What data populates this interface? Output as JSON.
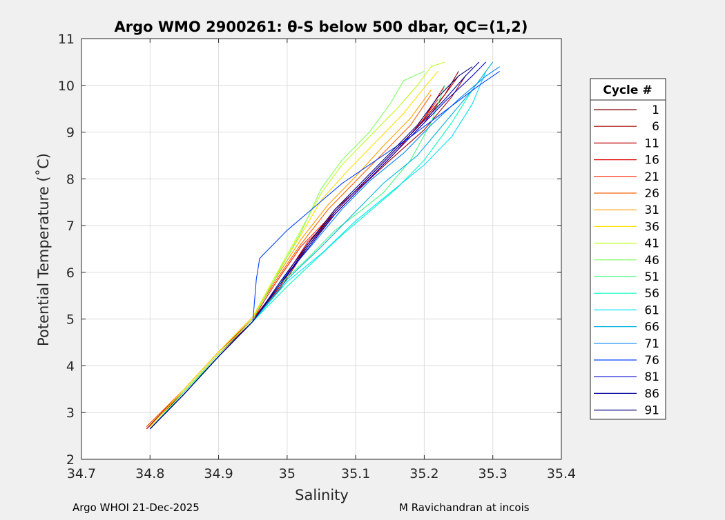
{
  "chart_data": {
    "type": "line",
    "title": "Argo WMO 2900261: θ-S below 500 dbar,  QC=(1,2)",
    "xlabel": "Salinity",
    "ylabel": "Potential Temperature (˚C)",
    "xlim": [
      34.7,
      35.4
    ],
    "ylim": [
      2,
      11
    ],
    "xticks": [
      34.7,
      34.8,
      34.9,
      35.0,
      35.1,
      35.2,
      35.3,
      35.4
    ],
    "xtick_labels": [
      "34.7",
      "34.8",
      "34.9",
      "35",
      "35.1",
      "35.2",
      "35.3",
      "35.4"
    ],
    "yticks": [
      2,
      3,
      4,
      5,
      6,
      7,
      8,
      9,
      10,
      11
    ],
    "ytick_labels": [
      "2",
      "3",
      "4",
      "5",
      "6",
      "7",
      "8",
      "9",
      "10",
      "11"
    ],
    "grid": true,
    "legend_title": "Cycle #",
    "legend_position": "right-outside",
    "series": [
      {
        "name": "1",
        "color": "#800000",
        "x": [
          34.795,
          34.85,
          34.9,
          34.95,
          34.99,
          35.03,
          35.07,
          35.11,
          35.15,
          35.19,
          35.23,
          35.25
        ],
        "y": [
          2.65,
          3.5,
          4.3,
          5.0,
          5.7,
          6.6,
          7.3,
          7.9,
          8.5,
          9.1,
          9.8,
          10.3
        ]
      },
      {
        "name": "6",
        "color": "#a00000",
        "x": [
          34.795,
          34.85,
          34.9,
          34.95,
          34.99,
          35.03,
          35.07,
          35.11,
          35.15,
          35.2,
          35.24,
          35.26
        ],
        "y": [
          2.65,
          3.45,
          4.25,
          4.95,
          5.65,
          6.55,
          7.25,
          7.85,
          8.4,
          9.05,
          9.75,
          10.2
        ]
      },
      {
        "name": "11",
        "color": "#c00000",
        "x": [
          34.795,
          34.85,
          34.9,
          34.95,
          34.99,
          35.03,
          35.07,
          35.12,
          35.16,
          35.2,
          35.23,
          35.25
        ],
        "y": [
          2.65,
          3.45,
          4.25,
          4.95,
          5.7,
          6.6,
          7.35,
          8.0,
          8.6,
          9.2,
          9.8,
          10.2
        ]
      },
      {
        "name": "16",
        "color": "#e00000",
        "x": [
          34.795,
          34.85,
          34.9,
          34.95,
          34.99,
          35.03,
          35.08,
          35.12,
          35.16,
          35.2,
          35.23
        ],
        "y": [
          2.7,
          3.5,
          4.3,
          5.0,
          5.75,
          6.65,
          7.4,
          8.0,
          8.6,
          9.3,
          10.0
        ]
      },
      {
        "name": "21",
        "color": "#ff2000",
        "x": [
          34.795,
          34.85,
          34.9,
          34.95,
          34.98,
          35.02,
          35.07,
          35.11,
          35.15,
          35.19,
          35.22
        ],
        "y": [
          2.7,
          3.5,
          4.3,
          5.0,
          5.7,
          6.55,
          7.3,
          7.9,
          8.5,
          9.1,
          9.7
        ]
      },
      {
        "name": "26",
        "color": "#ff6000",
        "x": [
          34.795,
          34.85,
          34.9,
          34.95,
          34.98,
          35.02,
          35.06,
          35.1,
          35.14,
          35.18,
          35.21
        ],
        "y": [
          2.7,
          3.5,
          4.3,
          5.05,
          5.75,
          6.6,
          7.35,
          7.95,
          8.55,
          9.15,
          9.8
        ]
      },
      {
        "name": "31",
        "color": "#ffa000",
        "x": [
          34.8,
          34.85,
          34.9,
          34.95,
          34.98,
          35.02,
          35.06,
          35.1,
          35.14,
          35.18,
          35.21
        ],
        "y": [
          2.7,
          3.5,
          4.3,
          5.05,
          5.8,
          6.7,
          7.45,
          8.05,
          8.7,
          9.3,
          9.9
        ]
      },
      {
        "name": "36",
        "color": "#ffe000",
        "x": [
          34.8,
          34.85,
          34.9,
          34.95,
          34.98,
          35.02,
          35.05,
          35.09,
          35.13,
          35.17,
          35.2,
          35.22
        ],
        "y": [
          2.7,
          3.5,
          4.3,
          5.05,
          5.85,
          6.8,
          7.55,
          8.2,
          8.8,
          9.4,
          9.95,
          10.3
        ]
      },
      {
        "name": "41",
        "color": "#c0ff20",
        "x": [
          34.8,
          34.85,
          34.9,
          34.95,
          34.98,
          35.02,
          35.05,
          35.08,
          35.12,
          35.16,
          35.19,
          35.21,
          35.23
        ],
        "y": [
          2.65,
          3.45,
          4.25,
          5.0,
          5.85,
          6.9,
          7.7,
          8.3,
          8.9,
          9.5,
          10.0,
          10.4,
          10.5
        ]
      },
      {
        "name": "46",
        "color": "#80ff60",
        "x": [
          34.8,
          34.85,
          34.9,
          34.95,
          34.98,
          35.02,
          35.05,
          35.08,
          35.12,
          35.15,
          35.17,
          35.2
        ],
        "y": [
          2.65,
          3.45,
          4.25,
          5.0,
          5.8,
          6.85,
          7.8,
          8.4,
          9.0,
          9.6,
          10.1,
          10.3
        ]
      },
      {
        "name": "51",
        "color": "#40ff80",
        "x": [
          34.8,
          34.85,
          34.9,
          34.95,
          34.99,
          35.03,
          35.07,
          35.11,
          35.14,
          35.18,
          35.21,
          35.23
        ],
        "y": [
          2.65,
          3.45,
          4.2,
          4.95,
          5.75,
          6.3,
          6.9,
          7.35,
          7.7,
          8.4,
          9.2,
          10.0
        ]
      },
      {
        "name": "56",
        "color": "#00ffc0",
        "x": [
          34.8,
          34.85,
          34.9,
          34.95,
          35.0,
          35.04,
          35.08,
          35.12,
          35.16,
          35.2,
          35.24,
          35.27
        ],
        "y": [
          2.65,
          3.4,
          4.2,
          4.95,
          5.7,
          6.25,
          6.8,
          7.3,
          7.8,
          8.4,
          9.2,
          9.9
        ]
      },
      {
        "name": "61",
        "color": "#00e0ff",
        "x": [
          34.8,
          34.85,
          34.9,
          34.95,
          35.0,
          35.05,
          35.1,
          35.15,
          35.2,
          35.24,
          35.27,
          35.29
        ],
        "y": [
          2.65,
          3.4,
          4.2,
          4.95,
          5.8,
          6.4,
          7.1,
          7.7,
          8.3,
          8.9,
          9.6,
          10.3
        ]
      },
      {
        "name": "66",
        "color": "#00b0e0",
        "x": [
          34.8,
          34.85,
          34.9,
          34.95,
          35.0,
          35.05,
          35.1,
          35.14,
          35.19,
          35.23,
          35.27,
          35.3
        ],
        "y": [
          2.65,
          3.4,
          4.2,
          4.95,
          5.85,
          6.55,
          7.3,
          7.9,
          8.5,
          9.2,
          9.9,
          10.5
        ]
      },
      {
        "name": "71",
        "color": "#0080ff",
        "x": [
          34.8,
          34.85,
          34.9,
          34.95,
          34.99,
          35.04,
          35.08,
          35.12,
          35.17,
          35.21,
          35.25,
          35.29,
          35.31
        ],
        "y": [
          2.65,
          3.4,
          4.2,
          4.95,
          5.8,
          6.65,
          7.35,
          7.95,
          8.55,
          9.15,
          9.7,
          10.2,
          10.4
        ]
      },
      {
        "name": "76",
        "color": "#0040ff",
        "x": [
          34.8,
          34.85,
          34.9,
          34.95,
          34.955,
          34.96,
          35.0,
          35.04,
          35.08,
          35.13,
          35.18,
          35.23,
          35.28,
          35.31
        ],
        "y": [
          2.65,
          3.4,
          4.2,
          4.95,
          5.85,
          6.3,
          6.9,
          7.4,
          7.9,
          8.4,
          8.9,
          9.45,
          10.0,
          10.3
        ]
      },
      {
        "name": "81",
        "color": "#0000d0",
        "x": [
          34.8,
          34.85,
          34.9,
          34.95,
          34.99,
          35.03,
          35.07,
          35.11,
          35.15,
          35.19,
          35.23,
          35.27,
          35.29
        ],
        "y": [
          2.65,
          3.4,
          4.2,
          4.95,
          5.75,
          6.5,
          7.25,
          7.85,
          8.45,
          9.05,
          9.65,
          10.2,
          10.5
        ]
      },
      {
        "name": "86",
        "color": "#0000a0",
        "x": [
          34.8,
          34.85,
          34.9,
          34.95,
          34.99,
          35.03,
          35.07,
          35.11,
          35.15,
          35.19,
          35.23,
          35.26,
          35.28
        ],
        "y": [
          2.65,
          3.4,
          4.2,
          4.95,
          5.75,
          6.55,
          7.3,
          7.9,
          8.5,
          9.1,
          9.7,
          10.2,
          10.5
        ]
      },
      {
        "name": "91",
        "color": "#000080",
        "x": [
          34.8,
          34.85,
          34.9,
          34.95,
          34.99,
          35.03,
          35.07,
          35.11,
          35.15,
          35.19,
          35.22,
          35.25,
          35.27
        ],
        "y": [
          2.65,
          3.4,
          4.2,
          4.95,
          5.8,
          6.6,
          7.35,
          7.95,
          8.55,
          9.15,
          9.75,
          10.2,
          10.4
        ]
      }
    ]
  },
  "footer": {
    "left": "Argo WHOI 21-Dec-2025",
    "right": "M Ravichandran at incois"
  }
}
